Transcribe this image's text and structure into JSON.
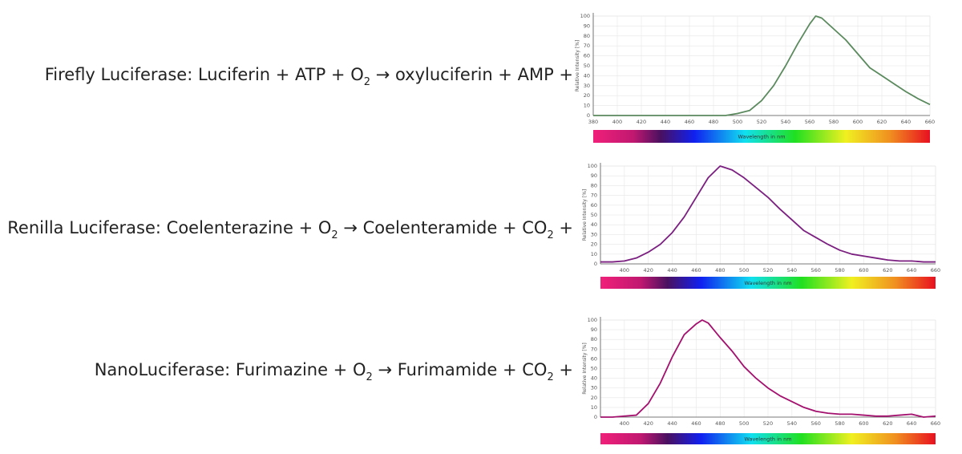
{
  "equations": [
    {
      "parts": [
        "Firefly Luciferase: Luciferin + ATP + O",
        "2",
        " → oxyluciferin + AMP +"
      ]
    },
    {
      "parts": [
        "Renilla Luciferase: Coelenterazine + O",
        "2",
        " → Coelenteramide + CO",
        "2",
        " +"
      ]
    },
    {
      "parts": [
        "NanoLuciferase: Furimazine + O",
        "2",
        " → Furimamide + CO",
        "2",
        " +"
      ]
    }
  ],
  "chart_data": [
    {
      "type": "line",
      "y_label": "Relative Intensity [%]",
      "spectrum_label": "Wavelength in nm",
      "grid": true,
      "xlim": [
        380,
        660
      ],
      "ylim": [
        0,
        100
      ],
      "xticks": [
        380,
        400,
        420,
        440,
        460,
        480,
        500,
        520,
        540,
        560,
        580,
        600,
        620,
        640,
        660
      ],
      "yticks": [
        0,
        10,
        20,
        30,
        40,
        50,
        60,
        70,
        80,
        90,
        100
      ],
      "x": [
        380,
        390,
        400,
        410,
        420,
        430,
        440,
        450,
        460,
        470,
        480,
        490,
        500,
        510,
        520,
        530,
        540,
        550,
        560,
        565,
        570,
        580,
        590,
        600,
        610,
        620,
        630,
        640,
        650,
        660
      ],
      "series": [
        {
          "color": "#5b8a5e",
          "values": [
            0,
            0,
            0,
            0,
            0,
            0,
            0,
            0,
            0,
            0,
            0,
            0,
            2,
            5,
            15,
            30,
            50,
            72,
            92,
            100,
            98,
            87,
            76,
            62,
            48,
            40,
            32,
            24,
            17,
            11
          ]
        }
      ]
    },
    {
      "type": "line",
      "y_label": "Relative Intensity [%]",
      "spectrum_label": "Wavelength in nm",
      "grid": true,
      "xlim": [
        380,
        660
      ],
      "ylim": [
        0,
        100
      ],
      "xticks": [
        400,
        420,
        440,
        460,
        480,
        500,
        520,
        540,
        560,
        580,
        600,
        620,
        640,
        660
      ],
      "yticks": [
        0,
        10,
        20,
        30,
        40,
        50,
        60,
        70,
        80,
        90,
        100
      ],
      "x": [
        380,
        390,
        400,
        410,
        420,
        430,
        440,
        450,
        460,
        470,
        480,
        490,
        500,
        510,
        520,
        530,
        540,
        550,
        560,
        570,
        580,
        590,
        600,
        610,
        620,
        630,
        640,
        650,
        660
      ],
      "series": [
        {
          "color": "#7b1f80",
          "values": [
            2,
            2,
            3,
            6,
            12,
            20,
            32,
            48,
            68,
            88,
            100,
            96,
            88,
            78,
            68,
            56,
            45,
            34,
            27,
            20,
            14,
            10,
            8,
            6,
            4,
            3,
            3,
            2,
            2
          ]
        }
      ]
    },
    {
      "type": "line",
      "y_label": "Relative Intensity [%]",
      "spectrum_label": "Wavelength in nm",
      "grid": true,
      "xlim": [
        380,
        660
      ],
      "ylim": [
        0,
        100
      ],
      "xticks": [
        400,
        420,
        440,
        460,
        480,
        500,
        520,
        540,
        560,
        580,
        600,
        620,
        640,
        660
      ],
      "yticks": [
        0,
        10,
        20,
        30,
        40,
        50,
        60,
        70,
        80,
        90,
        100
      ],
      "x": [
        380,
        390,
        400,
        410,
        420,
        430,
        440,
        450,
        460,
        465,
        470,
        480,
        490,
        500,
        510,
        520,
        530,
        540,
        550,
        560,
        570,
        580,
        590,
        600,
        610,
        620,
        630,
        640,
        650,
        660
      ],
      "series": [
        {
          "color": "#a3106e",
          "values": [
            0,
            0,
            1,
            2,
            14,
            35,
            62,
            85,
            96,
            100,
            97,
            82,
            68,
            52,
            40,
            30,
            22,
            16,
            10,
            6,
            4,
            3,
            3,
            2,
            1,
            1,
            2,
            3,
            0,
            1
          ]
        }
      ]
    }
  ]
}
